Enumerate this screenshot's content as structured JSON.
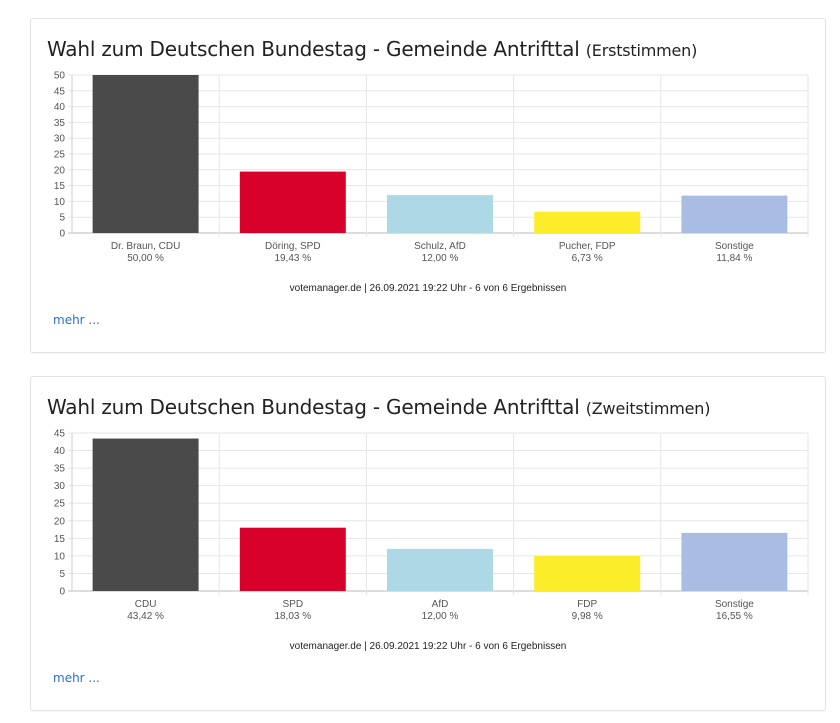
{
  "source_text": "votemanager.de | 26.09.2021 19:22 Uhr - 6 von 6 Ergebnissen",
  "more_link": "mehr ...",
  "chart_data": [
    {
      "type": "bar",
      "title": "Wahl zum Deutschen Bundestag - Gemeinde Antrifttal",
      "subtitle": "(Erststimmen)",
      "categories": [
        "Dr. Braun, CDU",
        "Döring, SPD",
        "Schulz, AfD",
        "Pucher, FDP",
        "Sonstige"
      ],
      "value_labels": [
        "50,00 %",
        "19,43 %",
        "12,00 %",
        "6,73 %",
        "11,84 %"
      ],
      "values": [
        50.0,
        19.43,
        12.0,
        6.73,
        11.84
      ],
      "colors": [
        "#4a4a4a",
        "#d7002b",
        "#add8e6",
        "#fced2b",
        "#a9bde3"
      ],
      "ylim": [
        0,
        50
      ],
      "yticks": [
        0,
        5,
        10,
        15,
        20,
        25,
        30,
        35,
        40,
        45,
        50
      ],
      "grid": true,
      "xlabel": "",
      "ylabel": ""
    },
    {
      "type": "bar",
      "title": "Wahl zum Deutschen Bundestag - Gemeinde Antrifttal",
      "subtitle": "(Zweitstimmen)",
      "categories": [
        "CDU",
        "SPD",
        "AfD",
        "FDP",
        "Sonstige"
      ],
      "value_labels": [
        "43,42 %",
        "18,03 %",
        "12,00 %",
        "9,98 %",
        "16,55 %"
      ],
      "values": [
        43.42,
        18.03,
        12.0,
        9.98,
        16.55
      ],
      "colors": [
        "#4a4a4a",
        "#d7002b",
        "#add8e6",
        "#fced2b",
        "#a9bde3"
      ],
      "ylim": [
        0,
        45
      ],
      "yticks": [
        0,
        5,
        10,
        15,
        20,
        25,
        30,
        35,
        40,
        45
      ],
      "grid": true,
      "xlabel": "",
      "ylabel": ""
    }
  ]
}
